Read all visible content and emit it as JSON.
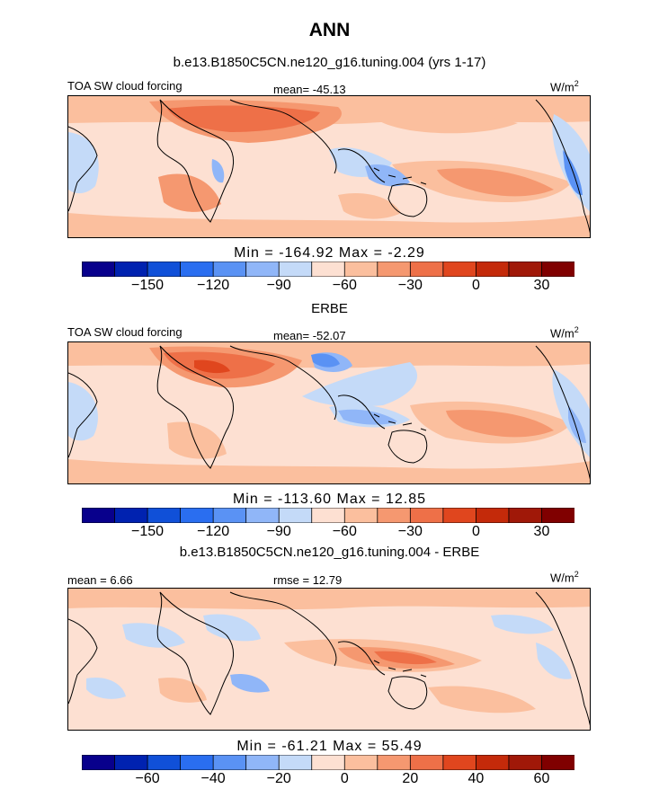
{
  "title": "ANN",
  "units_label": "W/m",
  "units_sup": "2",
  "panels": [
    {
      "title": "b.e13.B1850C5CN.ne120_g16.tuning.004 (yrs 1-17)",
      "left_label": "TOA SW cloud forcing",
      "center_label": "mean= -45.13",
      "minmax": "Min = -164.92 Max = -2.29",
      "colorbar_ticks": [
        "-150",
        "-120",
        "-90",
        "-60",
        "-30",
        "0",
        "30"
      ]
    },
    {
      "title": "ERBE",
      "left_label": "TOA SW cloud forcing",
      "center_label": "mean= -52.07",
      "minmax": "Min = -113.60 Max = 12.85",
      "colorbar_ticks": [
        "-150",
        "-120",
        "-90",
        "-60",
        "-30",
        "0",
        "30"
      ]
    },
    {
      "title": "b.e13.B1850C5CN.ne120_g16.tuning.004 - ERBE",
      "left_label": "mean = 6.66",
      "center_label": "rmse = 12.79",
      "minmax": "Min = -61.21 Max = 55.49",
      "colorbar_ticks": [
        "-60",
        "-40",
        "-20",
        "0",
        "20",
        "40",
        "60"
      ]
    }
  ],
  "colors": {
    "palette": [
      "#08008c",
      "#0022b0",
      "#1050d8",
      "#2a6ef0",
      "#5a92f4",
      "#90b6f8",
      "#c4daf8",
      "#fde0d2",
      "#fbbf9e",
      "#f59870",
      "#ee7048",
      "#e0461e",
      "#c42a0a",
      "#a01808",
      "#800000"
    ]
  },
  "chart_data": [
    {
      "type": "heatmap",
      "title": "b.e13.B1850C5CN.ne120_g16.tuning.004 (yrs 1-17)",
      "variable": "TOA SW cloud forcing",
      "units": "W/m2",
      "mean": -45.13,
      "min": -164.92,
      "max": -2.29,
      "colorbar_levels": [
        -165,
        -150,
        -135,
        -120,
        -105,
        -90,
        -75,
        -60,
        -45,
        -30,
        -15,
        0,
        15,
        30,
        45
      ],
      "colorbar_ticks": [
        -150,
        -120,
        -90,
        -60,
        -30,
        0,
        30
      ],
      "x_range": [
        0,
        360
      ],
      "y_range": [
        -50,
        50
      ]
    },
    {
      "type": "heatmap",
      "title": "ERBE",
      "variable": "TOA SW cloud forcing",
      "units": "W/m2",
      "mean": -52.07,
      "min": -113.6,
      "max": 12.85,
      "colorbar_levels": [
        -165,
        -150,
        -135,
        -120,
        -105,
        -90,
        -75,
        -60,
        -45,
        -30,
        -15,
        0,
        15,
        30,
        45
      ],
      "colorbar_ticks": [
        -150,
        -120,
        -90,
        -60,
        -30,
        0,
        30
      ],
      "x_range": [
        0,
        360
      ],
      "y_range": [
        -50,
        50
      ]
    },
    {
      "type": "heatmap",
      "title": "b.e13.B1850C5CN.ne120_g16.tuning.004 - ERBE",
      "units": "W/m2",
      "mean": 6.66,
      "rmse": 12.79,
      "min": -61.21,
      "max": 55.49,
      "colorbar_levels": [
        -70,
        -60,
        -50,
        -40,
        -30,
        -20,
        -10,
        0,
        10,
        20,
        30,
        40,
        50,
        60,
        70
      ],
      "colorbar_ticks": [
        -60,
        -40,
        -20,
        0,
        20,
        40,
        60
      ],
      "x_range": [
        0,
        360
      ],
      "y_range": [
        -50,
        50
      ]
    }
  ]
}
